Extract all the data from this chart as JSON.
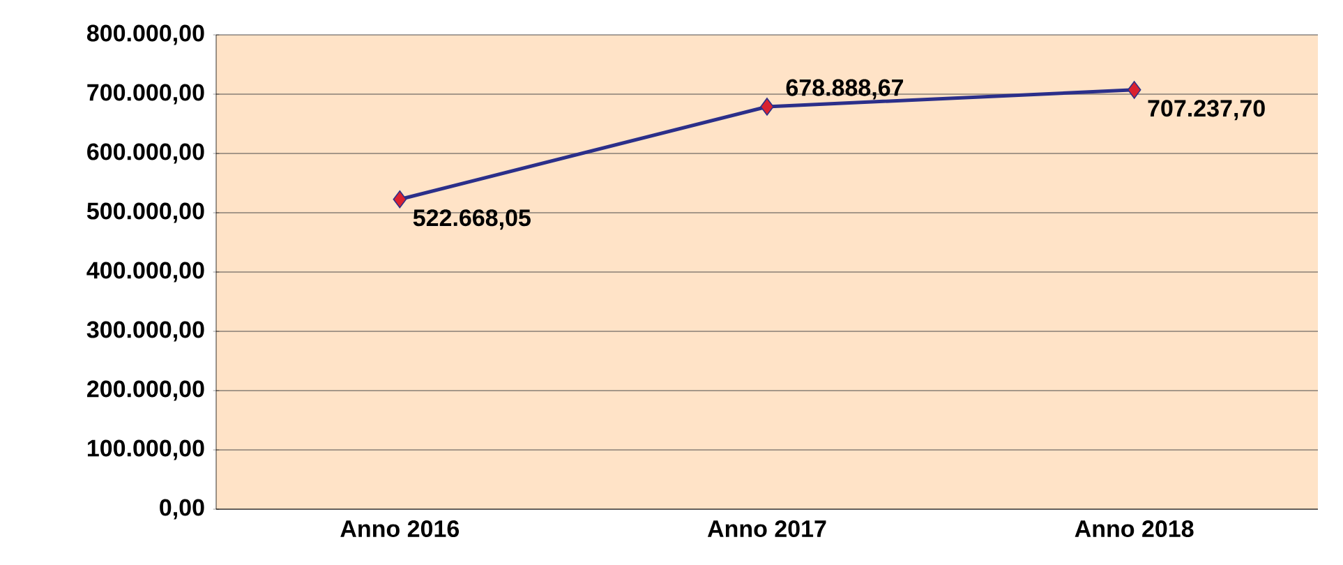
{
  "chart_data": {
    "type": "line",
    "categories": [
      "Anno 2016",
      "Anno 2017",
      "Anno 2018"
    ],
    "series": [
      {
        "color": "#2b2f8a",
        "colors": [
          "#d9212f",
          "#d9212f",
          "#d9212f"
        ],
        "values": [
          522668.05,
          678888.67,
          707237.7
        ],
        "value_labels": [
          "522.668,05",
          "678.888,67",
          "707.237,70"
        ]
      }
    ],
    "ylim": [
      0,
      800000
    ],
    "yticks": [
      {
        "value": 0,
        "label": "0,00"
      },
      {
        "value": 100000,
        "label": "100.000,00"
      },
      {
        "value": 200000,
        "label": "200.000,00"
      },
      {
        "value": 300000,
        "label": "300.000,00"
      },
      {
        "value": 400000,
        "label": "400.000,00"
      },
      {
        "value": 500000,
        "label": "500.000,00"
      },
      {
        "value": 600000,
        "label": "600.000,00"
      },
      {
        "value": 700000,
        "label": "700.000,00"
      },
      {
        "value": 800000,
        "label": "800.000,00"
      }
    ],
    "grid": "y",
    "marker": "diamond",
    "line_style": "solid"
  }
}
